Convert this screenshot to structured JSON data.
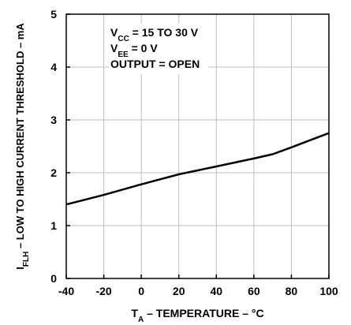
{
  "chart_data": {
    "type": "line",
    "title": "",
    "xlabel": {
      "main": "T",
      "sub": "A",
      "rest": " – TEMPERATURE – °C"
    },
    "ylabel": {
      "main": "I",
      "sub": "FLH",
      "rest": " – LOW TO HIGH CURRENT THRESHOLD – mA"
    },
    "xlim": [
      -40,
      100
    ],
    "ylim": [
      0,
      5
    ],
    "xticks": [
      -40,
      -20,
      0,
      20,
      40,
      60,
      80,
      100
    ],
    "yticks": [
      0,
      1,
      2,
      3,
      4,
      5
    ],
    "grid": true,
    "legend": "none",
    "annotations": [
      {
        "main": "V",
        "sub": "CC",
        "rest": " = 15 TO 30 V"
      },
      {
        "main": "V",
        "sub": "EE",
        "rest": " = 0 V"
      },
      {
        "main": "OUTPUT = OPEN",
        "sub": "",
        "rest": ""
      }
    ],
    "series": [
      {
        "x": [
          -40,
          -20,
          0,
          20,
          40,
          60,
          70,
          80,
          100
        ],
        "y": [
          1.4,
          1.58,
          1.78,
          1.97,
          2.12,
          2.27,
          2.35,
          2.48,
          2.75
        ]
      }
    ],
    "colors": {
      "line": "#000000",
      "grid": "#bfbfbf",
      "frame": "#000000"
    }
  }
}
